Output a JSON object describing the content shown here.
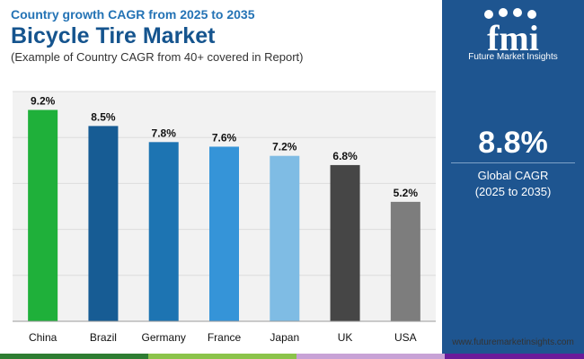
{
  "header": {
    "kicker": "Country growth CAGR from 2025 to 2035",
    "title": "Bicycle Tire Market",
    "subtitle": "(Example of Country CAGR from 40+ covered in Report)"
  },
  "chart_data": {
    "type": "bar",
    "categories": [
      "China",
      "Brazil",
      "Germany",
      "France",
      "Japan",
      "UK",
      "USA"
    ],
    "values": [
      9.2,
      8.5,
      7.8,
      7.6,
      7.2,
      6.8,
      5.2
    ],
    "value_labels": [
      "9.2%",
      "8.5%",
      "7.8%",
      "7.6%",
      "7.2%",
      "6.8%",
      "5.2%"
    ],
    "bar_colors": [
      "#1fb03a",
      "#175c94",
      "#1d74b2",
      "#3594d8",
      "#7fbce4",
      "#464646",
      "#7d7d7d"
    ],
    "ylim": [
      0,
      10
    ],
    "grid": true,
    "xlabel": "",
    "ylabel": ""
  },
  "side_panel": {
    "logo_tagline": "Future Market Insights",
    "big_value": "8.8%",
    "label_line1": "Global CAGR",
    "label_line2": "(2025 to 2035)"
  },
  "footer": {
    "website": "www.futuremarketinsights.com"
  },
  "colors": {
    "panel_bg": "#1e5590",
    "bottom_bar": [
      "#2e7d32",
      "#8bc34a",
      "#c8a2d6",
      "#6a1b9a"
    ]
  }
}
